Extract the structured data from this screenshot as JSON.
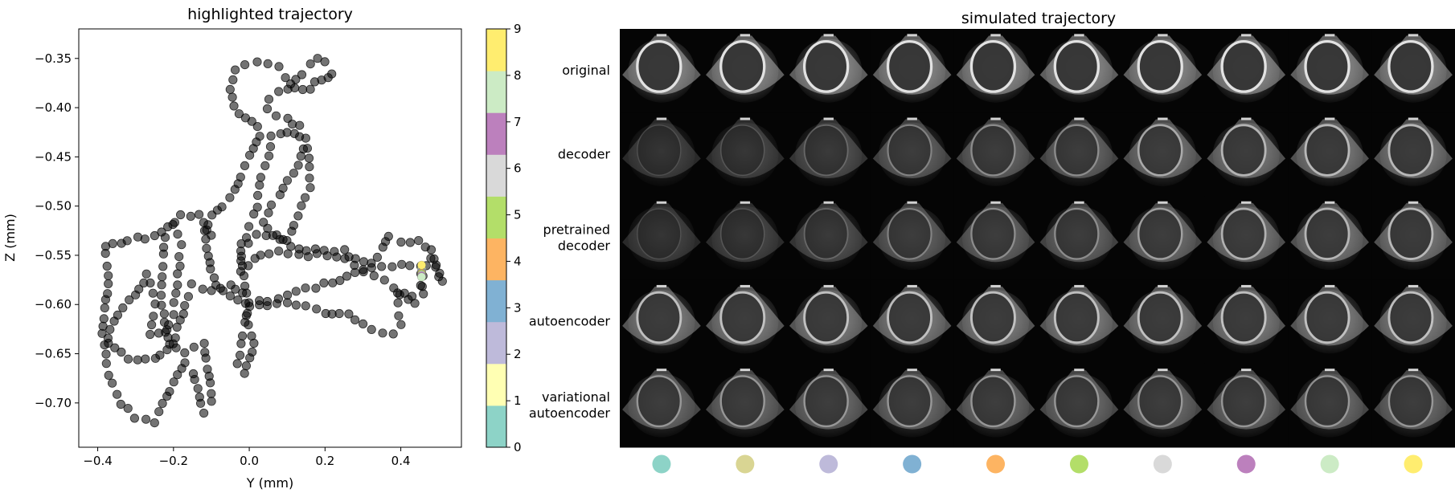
{
  "chart_data": [
    {
      "type": "scatter",
      "title": "highlighted trajectory",
      "xlabel": "Y (mm)",
      "ylabel": "Z (mm)",
      "xlim": [
        -0.45,
        0.56
      ],
      "ylim": [
        -0.745,
        -0.32
      ],
      "xticks": [
        -0.4,
        -0.2,
        0.0,
        0.2,
        0.4
      ],
      "xtick_labels": [
        "−0.4",
        "−0.2",
        "0.0",
        "0.2",
        "0.4"
      ],
      "yticks": [
        -0.35,
        -0.4,
        -0.45,
        -0.5,
        -0.55,
        -0.6,
        -0.65,
        -0.7
      ],
      "ytick_labels": [
        "−0.35",
        "−0.40",
        "−0.45",
        "−0.50",
        "−0.55",
        "−0.60",
        "−0.65",
        "−0.70"
      ],
      "grid": false,
      "point_color": "#000000",
      "point_alpha": 0.55,
      "trajectory_waypoints": [
        [
          -0.1,
          -0.53
        ],
        [
          -0.13,
          -0.51
        ],
        [
          -0.18,
          -0.51
        ],
        [
          -0.25,
          -0.53
        ],
        [
          -0.32,
          -0.535
        ],
        [
          -0.38,
          -0.54
        ],
        [
          -0.37,
          -0.58
        ],
        [
          -0.39,
          -0.63
        ],
        [
          -0.38,
          -0.64
        ],
        [
          -0.35,
          -0.61
        ],
        [
          -0.3,
          -0.59
        ],
        [
          -0.27,
          -0.57
        ],
        [
          -0.25,
          -0.6
        ],
        [
          -0.26,
          -0.63
        ],
        [
          -0.22,
          -0.63
        ],
        [
          -0.2,
          -0.61
        ],
        [
          -0.19,
          -0.58
        ],
        [
          -0.18,
          -0.54
        ],
        [
          -0.2,
          -0.52
        ],
        [
          -0.22,
          -0.53
        ],
        [
          -0.23,
          -0.56
        ],
        [
          -0.23,
          -0.6
        ],
        [
          -0.21,
          -0.64
        ],
        [
          -0.17,
          -0.65
        ],
        [
          -0.12,
          -0.64
        ],
        [
          -0.1,
          -0.68
        ],
        [
          -0.1,
          -0.7
        ],
        [
          -0.12,
          -0.71
        ],
        [
          -0.15,
          -0.67
        ],
        [
          -0.17,
          -0.66
        ],
        [
          -0.2,
          -0.68
        ],
        [
          -0.23,
          -0.7
        ],
        [
          -0.25,
          -0.72
        ],
        [
          -0.3,
          -0.715
        ],
        [
          -0.34,
          -0.7
        ],
        [
          -0.36,
          -0.68
        ],
        [
          -0.38,
          -0.66
        ],
        [
          -0.37,
          -0.64
        ],
        [
          -0.32,
          -0.655
        ],
        [
          -0.25,
          -0.655
        ],
        [
          -0.2,
          -0.64
        ],
        [
          -0.17,
          -0.6
        ],
        [
          -0.15,
          -0.58
        ],
        [
          -0.1,
          -0.585
        ],
        [
          -0.05,
          -0.58
        ],
        [
          -0.02,
          -0.59
        ],
        [
          0.0,
          -0.6
        ],
        [
          0.05,
          -0.6
        ],
        [
          0.1,
          -0.6
        ],
        [
          0.15,
          -0.6
        ],
        [
          0.2,
          -0.61
        ],
        [
          0.26,
          -0.61
        ],
        [
          0.3,
          -0.62
        ],
        [
          0.35,
          -0.63
        ],
        [
          0.38,
          -0.63
        ],
        [
          0.4,
          -0.62
        ],
        [
          0.39,
          -0.59
        ],
        [
          0.43,
          -0.59
        ],
        [
          0.45,
          -0.58
        ],
        [
          0.46,
          -0.57
        ],
        [
          0.47,
          -0.56
        ],
        [
          0.48,
          -0.555
        ],
        [
          0.5,
          -0.57
        ],
        [
          0.51,
          -0.575
        ],
        [
          0.48,
          -0.545
        ],
        [
          0.45,
          -0.535
        ],
        [
          0.4,
          -0.535
        ],
        [
          0.37,
          -0.53
        ],
        [
          0.34,
          -0.55
        ],
        [
          0.32,
          -0.56
        ],
        [
          0.28,
          -0.555
        ],
        [
          0.23,
          -0.55
        ],
        [
          0.18,
          -0.55
        ],
        [
          0.13,
          -0.55
        ],
        [
          0.08,
          -0.545
        ],
        [
          0.03,
          -0.55
        ],
        [
          0.0,
          -0.56
        ],
        [
          -0.02,
          -0.565
        ],
        [
          -0.02,
          -0.545
        ],
        [
          0.02,
          -0.53
        ],
        [
          0.07,
          -0.53
        ],
        [
          0.11,
          -0.54
        ],
        [
          0.15,
          -0.545
        ],
        [
          0.2,
          -0.545
        ],
        [
          0.25,
          -0.545
        ],
        [
          0.28,
          -0.56
        ],
        [
          0.3,
          -0.565
        ],
        [
          0.33,
          -0.57
        ],
        [
          0.36,
          -0.575
        ],
        [
          0.4,
          -0.59
        ],
        [
          0.44,
          -0.6
        ],
        [
          0.46,
          -0.59
        ],
        [
          0.45,
          -0.57
        ],
        [
          0.45,
          -0.56
        ],
        [
          0.4,
          -0.56
        ],
        [
          0.3,
          -0.565
        ],
        [
          0.2,
          -0.58
        ],
        [
          0.15,
          -0.585
        ],
        [
          0.1,
          -0.59
        ],
        [
          0.05,
          -0.595
        ],
        [
          0.0,
          -0.6
        ],
        [
          -0.01,
          -0.62
        ],
        [
          -0.02,
          -0.64
        ],
        [
          -0.03,
          -0.66
        ],
        [
          -0.01,
          -0.67
        ],
        [
          0.0,
          -0.655
        ],
        [
          0.01,
          -0.64
        ],
        [
          0.0,
          -0.62
        ],
        [
          -0.01,
          -0.6
        ],
        [
          -0.01,
          -0.58
        ],
        [
          -0.02,
          -0.56
        ],
        [
          -0.02,
          -0.54
        ],
        [
          0.0,
          -0.52
        ],
        [
          0.02,
          -0.5
        ],
        [
          0.03,
          -0.47
        ],
        [
          0.05,
          -0.45
        ],
        [
          0.06,
          -0.43
        ],
        [
          0.08,
          -0.425
        ],
        [
          0.12,
          -0.425
        ],
        [
          0.15,
          -0.43
        ],
        [
          0.16,
          -0.45
        ],
        [
          0.16,
          -0.48
        ],
        [
          0.14,
          -0.5
        ],
        [
          0.12,
          -0.52
        ],
        [
          0.1,
          -0.535
        ],
        [
          0.06,
          -0.53
        ],
        [
          0.04,
          -0.515
        ],
        [
          0.06,
          -0.5
        ],
        [
          0.08,
          -0.49
        ],
        [
          0.1,
          -0.475
        ],
        [
          0.13,
          -0.46
        ],
        [
          0.14,
          -0.44
        ],
        [
          0.13,
          -0.42
        ],
        [
          0.1,
          -0.41
        ],
        [
          0.07,
          -0.41
        ],
        [
          0.05,
          -0.4
        ],
        [
          0.05,
          -0.39
        ],
        [
          0.08,
          -0.385
        ],
        [
          0.12,
          -0.38
        ],
        [
          0.16,
          -0.38
        ],
        [
          0.19,
          -0.37
        ],
        [
          0.21,
          -0.37
        ],
        [
          0.22,
          -0.365
        ],
        [
          0.2,
          -0.355
        ],
        [
          0.18,
          -0.35
        ],
        [
          0.16,
          -0.355
        ],
        [
          0.14,
          -0.365
        ],
        [
          0.11,
          -0.375
        ],
        [
          0.08,
          -0.36
        ],
        [
          0.05,
          -0.355
        ],
        [
          0.02,
          -0.355
        ],
        [
          -0.01,
          -0.355
        ],
        [
          -0.04,
          -0.36
        ],
        [
          -0.05,
          -0.38
        ],
        [
          -0.04,
          -0.4
        ],
        [
          -0.01,
          -0.41
        ],
        [
          0.02,
          -0.42
        ],
        [
          0.03,
          -0.43
        ],
        [
          0.0,
          -0.45
        ],
        [
          -0.02,
          -0.47
        ],
        [
          -0.05,
          -0.49
        ],
        [
          -0.07,
          -0.5
        ],
        [
          -0.1,
          -0.51
        ],
        [
          -0.12,
          -0.525
        ],
        [
          -0.11,
          -0.55
        ],
        [
          -0.1,
          -0.565
        ],
        [
          -0.09,
          -0.58
        ],
        [
          -0.05,
          -0.59
        ],
        [
          -0.01,
          -0.6
        ]
      ],
      "highlighted_points": [
        {
          "y": 0.455,
          "z": -0.562,
          "label": 0
        },
        {
          "y": 0.455,
          "z": -0.564,
          "label": 1
        },
        {
          "y": 0.455,
          "z": -0.566,
          "label": 2
        },
        {
          "y": 0.455,
          "z": -0.567,
          "label": 3
        },
        {
          "y": 0.455,
          "z": -0.568,
          "label": 4
        },
        {
          "y": 0.455,
          "z": -0.569,
          "label": 5
        },
        {
          "y": 0.455,
          "z": -0.57,
          "label": 6
        },
        {
          "y": 0.455,
          "z": -0.571,
          "label": 7
        },
        {
          "y": 0.455,
          "z": -0.572,
          "label": 8
        },
        {
          "y": 0.455,
          "z": -0.56,
          "label": 9
        }
      ],
      "colorbar": {
        "range": [
          0,
          9
        ],
        "ticks": [
          0,
          1,
          2,
          3,
          4,
          5,
          6,
          7,
          8,
          9
        ],
        "tick_labels": [
          "0",
          "1",
          "2",
          "3",
          "4",
          "5",
          "6",
          "7",
          "8",
          "9"
        ],
        "colors": [
          "#8dd3c7",
          "#ffffb3",
          "#bebada",
          "#80b1d3",
          "#fdb462",
          "#b3de69",
          "#d9d9d9",
          "#bc80bd",
          "#ccebc5",
          "#ffed6f"
        ]
      }
    },
    {
      "type": "image_grid",
      "title": "simulated trajectory",
      "rows": [
        "original",
        "decoder",
        "pretrained decoder",
        "autoencoder",
        "variational autoencoder"
      ],
      "row_labels": [
        [
          "original"
        ],
        [
          "decoder"
        ],
        [
          "pretrained",
          "decoder"
        ],
        [
          "autoencoder"
        ],
        [
          "variational",
          "autoencoder"
        ]
      ],
      "columns": 10,
      "column_marker_colors": [
        "#8dd3c7",
        "#d9d593",
        "#bebada",
        "#80b1d3",
        "#fdb462",
        "#b3de69",
        "#d9d9d9",
        "#bc80bd",
        "#ccebc5",
        "#ffed6f"
      ],
      "row_brightness": [
        [
          0.9,
          0.9,
          0.9,
          0.9,
          0.9,
          0.9,
          0.9,
          0.9,
          0.9,
          0.9
        ],
        [
          0.15,
          0.2,
          0.3,
          0.45,
          0.5,
          0.5,
          0.65,
          0.7,
          0.72,
          0.72
        ],
        [
          0.15,
          0.2,
          0.3,
          0.45,
          0.5,
          0.5,
          0.6,
          0.68,
          0.7,
          0.72
        ],
        [
          0.75,
          0.75,
          0.75,
          0.75,
          0.75,
          0.75,
          0.75,
          0.75,
          0.75,
          0.75
        ],
        [
          0.55,
          0.55,
          0.55,
          0.55,
          0.55,
          0.55,
          0.55,
          0.55,
          0.55,
          0.55
        ]
      ]
    }
  ]
}
